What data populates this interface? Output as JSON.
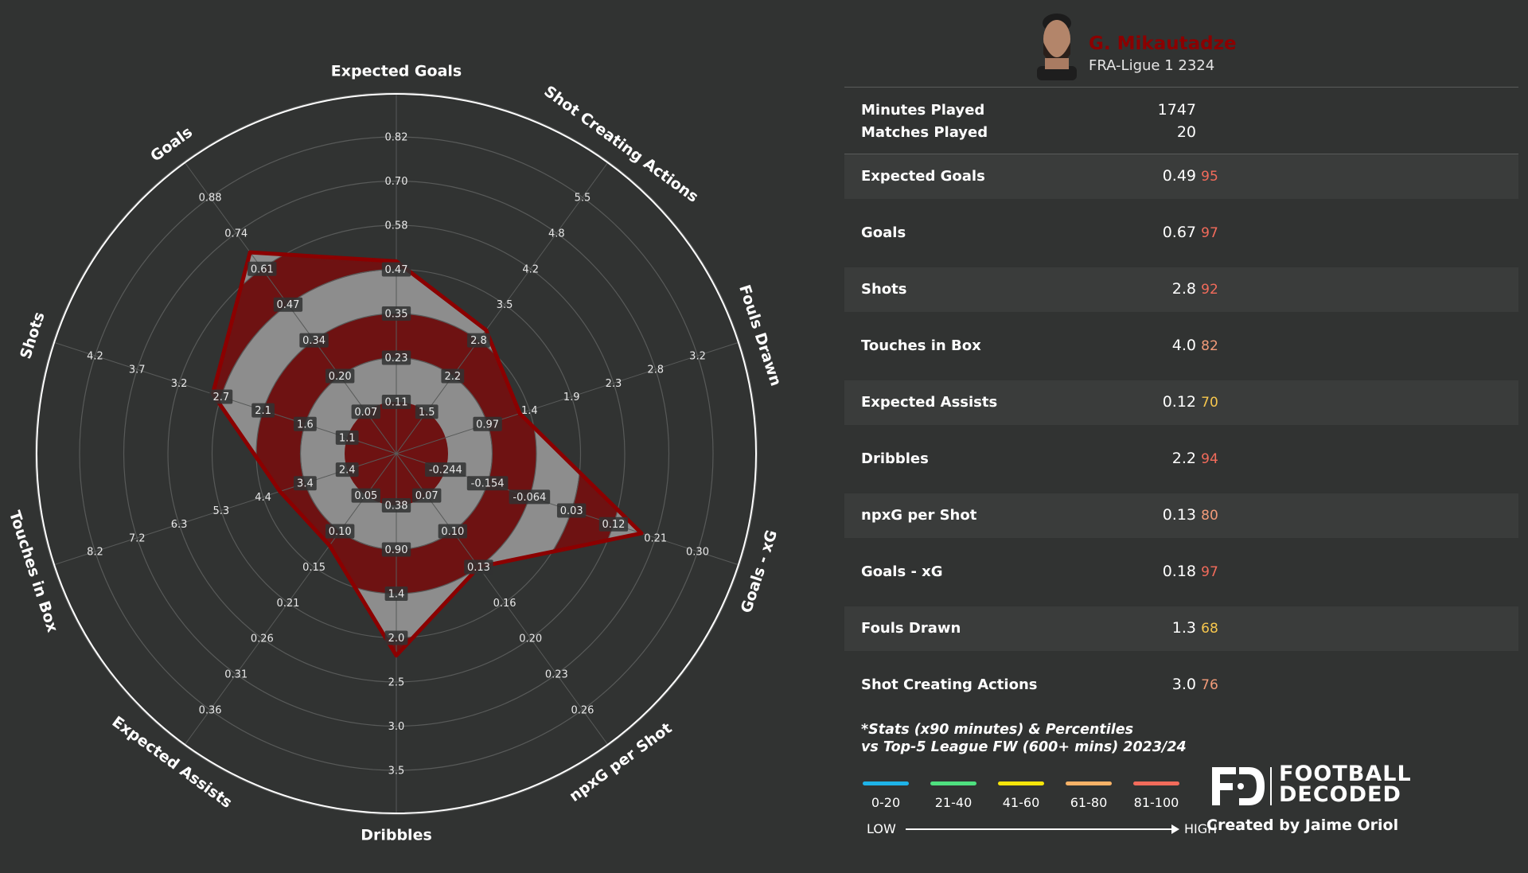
{
  "player": {
    "name": "G. Mikautadze",
    "league": "FRA-Ligue 1 2324"
  },
  "meta": [
    {
      "label": "Minutes Played",
      "value": "1747"
    },
    {
      "label": "Matches Played",
      "value": "20"
    }
  ],
  "stats": [
    {
      "label": "Expected Goals",
      "value": "0.49",
      "percentile": "95",
      "color": "#f26b5b"
    },
    {
      "label": "Goals",
      "value": "0.67",
      "percentile": "97",
      "color": "#f26b5b"
    },
    {
      "label": "Shots",
      "value": "2.8",
      "percentile": "92",
      "color": "#f26b5b"
    },
    {
      "label": "Touches in Box",
      "value": "4.0",
      "percentile": "82",
      "color": "#f29b79"
    },
    {
      "label": "Expected Assists",
      "value": "0.12",
      "percentile": "70",
      "color": "#f7c74d"
    },
    {
      "label": "Dribbles",
      "value": "2.2",
      "percentile": "94",
      "color": "#f26b5b"
    },
    {
      "label": "npxG per Shot",
      "value": "0.13",
      "percentile": "80",
      "color": "#f29b79"
    },
    {
      "label": "Goals - xG",
      "value": "0.18",
      "percentile": "97",
      "color": "#f26b5b"
    },
    {
      "label": "Fouls Drawn",
      "value": "1.3",
      "percentile": "68",
      "color": "#f7c74d"
    },
    {
      "label": "Shot Creating Actions",
      "value": "3.0",
      "percentile": "76",
      "color": "#f29b79"
    }
  ],
  "footnote": {
    "line1": "*Stats (x90 minutes) & Percentiles",
    "line2": "vs Top-5 League FW (600+ mins) 2023/24"
  },
  "scale": {
    "items": [
      {
        "label": "0-20",
        "color": "#1eb3e8"
      },
      {
        "label": "21-40",
        "color": "#4ee07f"
      },
      {
        "label": "41-60",
        "color": "#f5e50a"
      },
      {
        "label": "61-80",
        "color": "#f7b267"
      },
      {
        "label": "81-100",
        "color": "#f26b5b"
      }
    ],
    "low": "LOW",
    "high": "HIGH"
  },
  "brand": {
    "line1": "FOOTBALL",
    "line2": "DECODED",
    "credit": "Created by Jaime Oriol"
  },
  "chart_data": {
    "type": "radar",
    "axes": [
      {
        "label": "Expected Goals",
        "ticks": [
          "0.11",
          "0.23",
          "0.35",
          "0.47",
          "0.58",
          "0.70",
          "0.82"
        ],
        "value": 0.49
      },
      {
        "label": "Shot Creating Actions",
        "ticks": [
          "1.5",
          "2.2",
          "2.8",
          "3.5",
          "4.2",
          "4.8",
          "5.5"
        ],
        "value": 3.0
      },
      {
        "label": "Fouls Drawn",
        "ticks": [
          "0.97",
          "1.4",
          "1.9",
          "2.3",
          "2.8",
          "3.2"
        ],
        "value": 1.3
      },
      {
        "label": "Goals - xG",
        "ticks": [
          "-0.244",
          "-0.154",
          "-0.064",
          "0.03",
          "0.12",
          "0.21",
          "0.30"
        ],
        "value": 0.18
      },
      {
        "label": "npxG per Shot",
        "ticks": [
          "0.07",
          "0.10",
          "0.13",
          "0.16",
          "0.20",
          "0.23",
          "0.26"
        ],
        "value": 0.13
      },
      {
        "label": "Dribbles",
        "ticks": [
          "0.38",
          "0.90",
          "1.4",
          "2.0",
          "2.5",
          "3.0",
          "3.5"
        ],
        "value": 2.2
      },
      {
        "label": "Expected Assists",
        "ticks": [
          "0.05",
          "0.10",
          "0.15",
          "0.21",
          "0.26",
          "0.31",
          "0.36"
        ],
        "value": 0.12
      },
      {
        "label": "Touches in Box",
        "ticks": [
          "2.4",
          "3.4",
          "4.4",
          "5.3",
          "6.3",
          "7.2",
          "8.2"
        ],
        "value": 4.0
      },
      {
        "label": "Shots",
        "ticks": [
          "1.1",
          "1.6",
          "2.1",
          "2.7",
          "3.2",
          "3.7",
          "4.2"
        ],
        "value": 2.8
      },
      {
        "label": "Goals",
        "ticks": [
          "0.07",
          "0.20",
          "0.34",
          "0.47",
          "0.61",
          "0.74",
          "0.88"
        ],
        "value": 0.67
      }
    ],
    "tick_ring_start": {
      "Fouls Drawn": 1
    },
    "grid": true,
    "colors": {
      "fill": "#6e1212",
      "edge": "#8b0000",
      "rings": "#8d8d8d",
      "background": "#313332"
    }
  }
}
